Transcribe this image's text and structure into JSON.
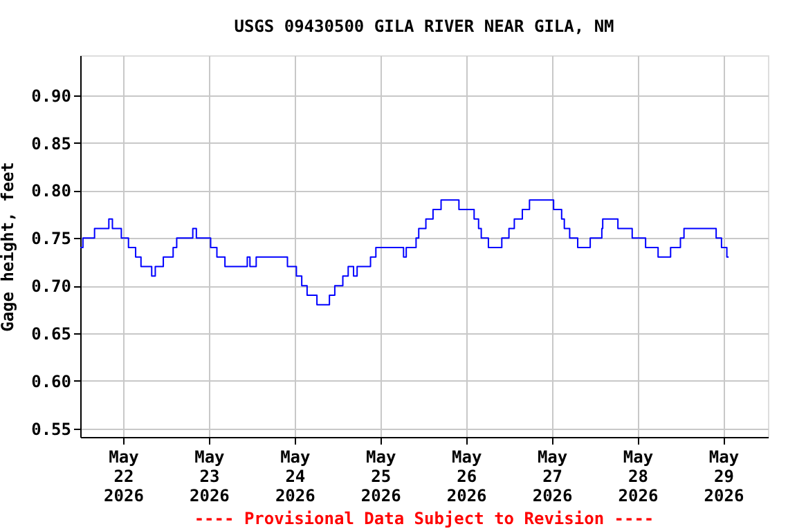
{
  "chart_data": {
    "type": "step",
    "title": "USGS 09430500 GILA RIVER NEAR GILA, NM",
    "ylabel": "Gage height, feet",
    "annotations": [
      "---- Provisional Data Subject to Revision ----"
    ],
    "x": [
      "2026-05-21T12:00",
      "2026-05-21T12:45",
      "2026-05-21T16:00",
      "2026-05-21T20:00",
      "2026-05-21T21:00",
      "2026-05-21T23:30",
      "2026-05-22T01:30",
      "2026-05-22T03:30",
      "2026-05-22T05:00",
      "2026-05-22T08:00",
      "2026-05-22T09:00",
      "2026-05-22T11:15",
      "2026-05-22T14:00",
      "2026-05-22T15:00",
      "2026-05-22T19:30",
      "2026-05-22T20:30",
      "2026-05-23T00:30",
      "2026-05-23T02:15",
      "2026-05-23T04:30",
      "2026-05-23T10:45",
      "2026-05-23T11:30",
      "2026-05-23T13:15",
      "2026-05-23T22:00",
      "2026-05-24T00:30",
      "2026-05-24T02:00",
      "2026-05-24T03:30",
      "2026-05-24T06:15",
      "2026-05-24T09:45",
      "2026-05-24T11:15",
      "2026-05-24T13:30",
      "2026-05-24T15:00",
      "2026-05-24T16:30",
      "2026-05-24T17:30",
      "2026-05-24T21:15",
      "2026-05-24T22:45",
      "2026-05-25T06:30",
      "2026-05-25T07:15",
      "2026-05-25T10:00",
      "2026-05-25T10:45",
      "2026-05-25T12:45",
      "2026-05-25T14:45",
      "2026-05-25T17:00",
      "2026-05-25T22:00",
      "2026-05-26T02:15",
      "2026-05-26T03:30",
      "2026-05-26T04:15",
      "2026-05-26T06:15",
      "2026-05-26T10:00",
      "2026-05-26T12:00",
      "2026-05-26T13:30",
      "2026-05-26T15:45",
      "2026-05-26T17:45",
      "2026-05-27T00:30",
      "2026-05-27T02:45",
      "2026-05-27T03:30",
      "2026-05-27T05:00",
      "2026-05-27T07:15",
      "2026-05-27T10:45",
      "2026-05-27T14:00",
      "2026-05-27T14:15",
      "2026-05-27T18:30",
      "2026-05-27T22:30",
      "2026-05-28T02:15",
      "2026-05-28T05:45",
      "2026-05-28T09:15",
      "2026-05-28T12:00",
      "2026-05-28T13:00",
      "2026-05-28T22:00",
      "2026-05-28T23:30",
      "2026-05-29T01:00",
      "2026-05-29T01:30"
    ],
    "series": [
      {
        "color": "#0000ff",
        "values": [
          0.74,
          0.75,
          0.76,
          0.77,
          0.76,
          0.75,
          0.74,
          0.73,
          0.72,
          0.71,
          0.72,
          0.73,
          0.74,
          0.75,
          0.76,
          0.75,
          0.74,
          0.73,
          0.72,
          0.73,
          0.72,
          0.73,
          0.72,
          0.71,
          0.7,
          0.69,
          0.68,
          0.69,
          0.7,
          0.71,
          0.72,
          0.71,
          0.72,
          0.73,
          0.74,
          0.73,
          0.74,
          0.75,
          0.76,
          0.77,
          0.78,
          0.79,
          0.78,
          0.77,
          0.76,
          0.75,
          0.74,
          0.75,
          0.76,
          0.77,
          0.78,
          0.79,
          0.78,
          0.77,
          0.76,
          0.75,
          0.74,
          0.75,
          0.76,
          0.77,
          0.76,
          0.75,
          0.74,
          0.73,
          0.74,
          0.75,
          0.76,
          0.75,
          0.74,
          0.73,
          0.73
        ]
      }
    ],
    "xlim": [
      "2026-05-21T12:00",
      "2026-05-29T12:30"
    ],
    "xticks": [
      {
        "value": "2026-05-22",
        "label": "May\n22\n2026"
      },
      {
        "value": "2026-05-23",
        "label": "May\n23\n2026"
      },
      {
        "value": "2026-05-24",
        "label": "May\n24\n2026"
      },
      {
        "value": "2026-05-25",
        "label": "May\n25\n2026"
      },
      {
        "value": "2026-05-26",
        "label": "May\n26\n2026"
      },
      {
        "value": "2026-05-27",
        "label": "May\n27\n2026"
      },
      {
        "value": "2026-05-28",
        "label": "May\n28\n2026"
      },
      {
        "value": "2026-05-29",
        "label": "May\n29\n2026"
      }
    ],
    "ylim": [
      0.541,
      0.942
    ],
    "yticks": [
      {
        "value": 0.55,
        "label": "0.55"
      },
      {
        "value": 0.6,
        "label": "0.60"
      },
      {
        "value": 0.65,
        "label": "0.65"
      },
      {
        "value": 0.7,
        "label": "0.70"
      },
      {
        "value": 0.75,
        "label": "0.75"
      },
      {
        "value": 0.8,
        "label": "0.80"
      },
      {
        "value": 0.85,
        "label": "0.85"
      },
      {
        "value": 0.9,
        "label": "0.90"
      }
    ],
    "grid": true
  }
}
